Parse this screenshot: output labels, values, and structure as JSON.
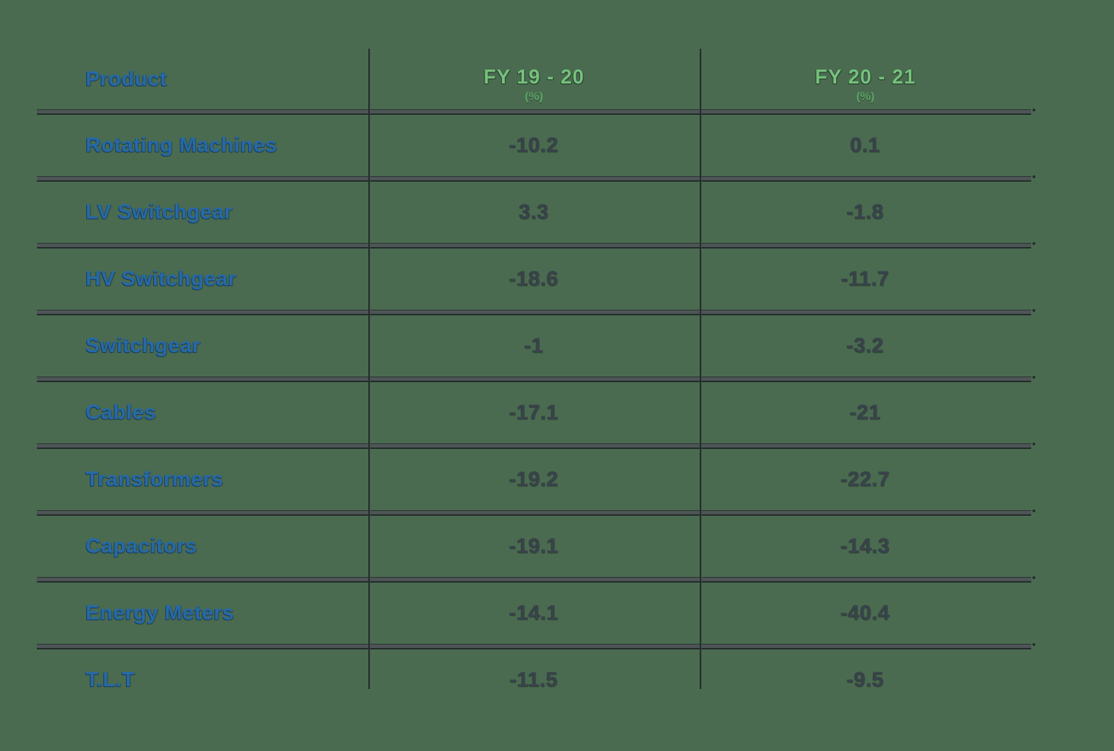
{
  "colors": {
    "background": "#4A6B50",
    "product_text": "#2669A6",
    "fy_header_text": "#74C17C",
    "value_text": "#39434A",
    "grid_line": "#2A3231"
  },
  "table": {
    "columns": [
      {
        "label": "Product",
        "unit": ""
      },
      {
        "label": "FY 19 - 20",
        "unit": "(%)"
      },
      {
        "label": "FY 20 - 21",
        "unit": "(%)"
      }
    ],
    "rows": [
      {
        "product": "Rotating Machines",
        "fy19_20": "-10.2",
        "fy20_21": "0.1"
      },
      {
        "product": "LV Switchgear",
        "fy19_20": "3.3",
        "fy20_21": "-1.8"
      },
      {
        "product": "HV Switchgear",
        "fy19_20": "-18.6",
        "fy20_21": "-11.7"
      },
      {
        "product": "Switchgear",
        "fy19_20": "-1",
        "fy20_21": "-3.2"
      },
      {
        "product": "Cables",
        "fy19_20": "-17.1",
        "fy20_21": "-21"
      },
      {
        "product": "Transformers",
        "fy19_20": "-19.2",
        "fy20_21": "-22.7"
      },
      {
        "product": "Capacitors",
        "fy19_20": "-19.1",
        "fy20_21": "-14.3"
      },
      {
        "product": "Energy Meters",
        "fy19_20": "-14.1",
        "fy20_21": "-40.4"
      },
      {
        "product": "T.L.T",
        "fy19_20": "-11.5",
        "fy20_21": "-9.5"
      }
    ]
  },
  "chart_data": {
    "type": "table",
    "title": "",
    "categories": [
      "Rotating Machines",
      "LV Switchgear",
      "HV Switchgear",
      "Switchgear",
      "Cables",
      "Transformers",
      "Capacitors",
      "Energy Meters",
      "T.L.T"
    ],
    "series": [
      {
        "name": "FY 19 - 20 (%)",
        "values": [
          -10.2,
          3.3,
          -18.6,
          -1,
          -17.1,
          -19.2,
          -19.1,
          -14.1,
          -11.5
        ]
      },
      {
        "name": "FY 20 - 21 (%)",
        "values": [
          0.1,
          -1.8,
          -11.7,
          -3.2,
          -21,
          -22.7,
          -14.3,
          -40.4,
          -9.5
        ]
      }
    ],
    "layout": {
      "grid": "horizontal-and-column-dividers",
      "legend": "none"
    }
  }
}
